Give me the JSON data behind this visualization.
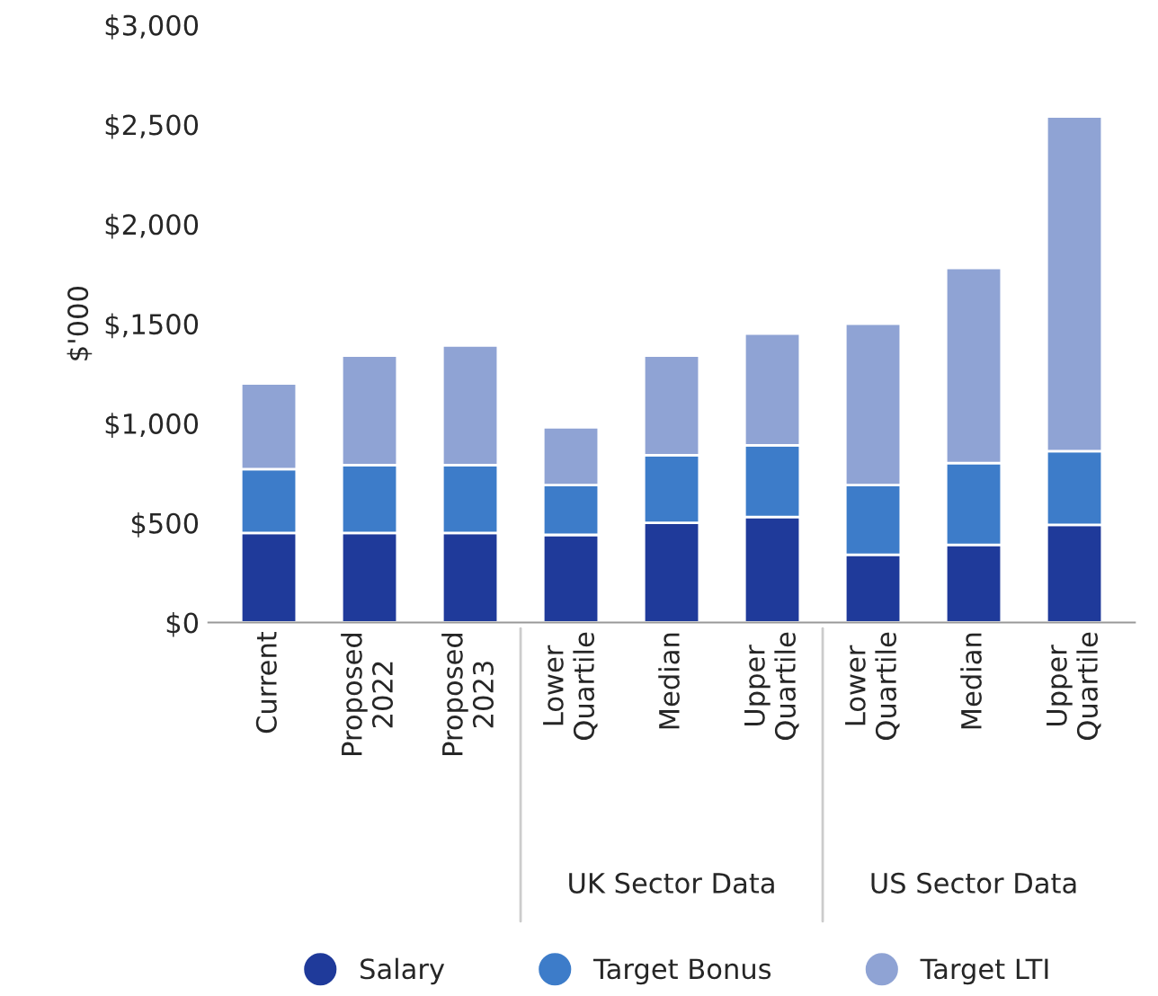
{
  "chart_data": {
    "type": "bar",
    "stacked": true,
    "ylabel": "$'000",
    "categories": [
      "Current",
      "Proposed\n2022",
      "Proposed\n2023",
      "Lower\nQuartile",
      "Median",
      "Upper\nQuartile",
      "Lower\nQuartile",
      "Median",
      "Upper\nQuartile"
    ],
    "series": [
      {
        "name": "Salary",
        "color": "#1f3a9a",
        "values": [
          450,
          450,
          450,
          440,
          500,
          530,
          340,
          390,
          490
        ]
      },
      {
        "name": "Target Bonus",
        "color": "#3d7cc9",
        "values": [
          320,
          340,
          340,
          250,
          340,
          360,
          350,
          410,
          370
        ]
      },
      {
        "name": "Target LTI",
        "color": "#8fa3d4",
        "values": [
          430,
          550,
          600,
          290,
          500,
          560,
          810,
          980,
          1680
        ]
      }
    ],
    "ylim": [
      0,
      3000
    ],
    "yticks": [
      {
        "value": 0,
        "label": "$0"
      },
      {
        "value": 500,
        "label": "$500"
      },
      {
        "value": 1000,
        "label": "$1,000"
      },
      {
        "value": 1500,
        "label": "$,1500"
      },
      {
        "value": 2000,
        "label": "$2,000"
      },
      {
        "value": 2500,
        "label": "$2,500"
      },
      {
        "value": 3000,
        "label": "$3,000"
      }
    ],
    "annotations": [
      "UK Sector Data",
      "US Sector Data"
    ],
    "grid": false,
    "legend": "bottom"
  }
}
